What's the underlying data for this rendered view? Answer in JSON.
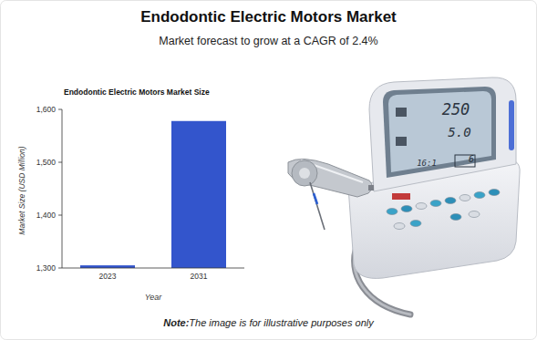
{
  "page": {
    "title": "Endodontic Electric Motors Market",
    "subtitle": "Market forecast to grow at a CAGR of 2.4%",
    "note_label": "Note:",
    "note": "The image is for illustrative purposes only"
  },
  "chart_data": {
    "type": "bar",
    "title": "Endodontic Electric Motors Market Size",
    "x_label": "Year",
    "y_label": "Market Size (USD Million)",
    "categories": [
      "2023",
      "2031"
    ],
    "values": [
      1305,
      1578
    ],
    "color": "#3355cc",
    "ylim": [
      1300,
      1600
    ],
    "yticks": [
      {
        "value": 1300,
        "label": "1,300"
      },
      {
        "value": 1400,
        "label": "1,400"
      },
      {
        "value": 1500,
        "label": "1,500"
      },
      {
        "value": 1600,
        "label": "1,600"
      }
    ],
    "grid": false
  },
  "illustration": {
    "display_texts": [
      "250",
      "5.0",
      "16:1",
      "6"
    ]
  }
}
